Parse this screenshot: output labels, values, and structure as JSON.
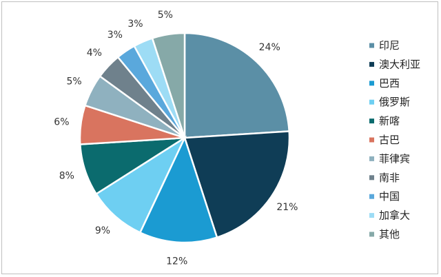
{
  "chart_data": {
    "type": "pie",
    "title": "",
    "legend_position": "right",
    "slices": [
      {
        "label": "印尼",
        "value": 24,
        "display": "24%",
        "color": "#5b8fa6"
      },
      {
        "label": "澳大利亚",
        "value": 21,
        "display": "21%",
        "color": "#0f3d56"
      },
      {
        "label": "巴西",
        "value": 12,
        "display": "12%",
        "color": "#1b9bd2"
      },
      {
        "label": "俄罗斯",
        "value": 9,
        "display": "9%",
        "color": "#6ecff2"
      },
      {
        "label": "新喀",
        "value": 8,
        "display": "8%",
        "color": "#0b6b6e"
      },
      {
        "label": "古巴",
        "value": 6,
        "display": "6%",
        "color": "#d9745f"
      },
      {
        "label": "菲律宾",
        "value": 5,
        "display": "5%",
        "color": "#8fb1bf"
      },
      {
        "label": "南非",
        "value": 4,
        "display": "4%",
        "color": "#6f818c"
      },
      {
        "label": "中国",
        "value": 3,
        "display": "3%",
        "color": "#5aa8dc"
      },
      {
        "label": "加拿大",
        "value": 3,
        "display": "3%",
        "color": "#9ddcf5"
      },
      {
        "label": "其他",
        "value": 5,
        "display": "5%",
        "color": "#86a9a8"
      }
    ]
  }
}
